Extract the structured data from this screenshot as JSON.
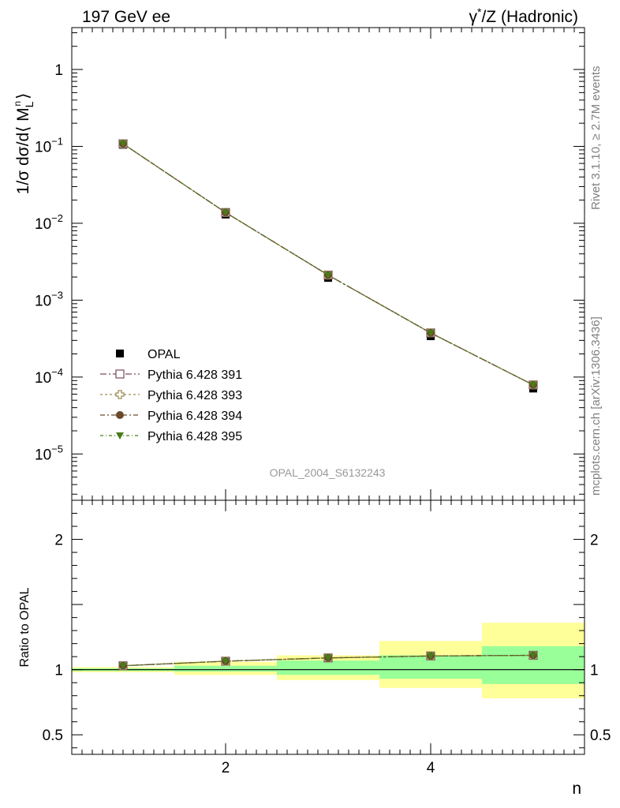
{
  "header": {
    "left": "197 GeV ee",
    "right_prefix": "γ",
    "right_sup": "*",
    "right_rest": "/Z (Hadronic)"
  },
  "side": {
    "rivet": "Rivet 3.1.10, ≥ 2.7M events",
    "mcplots": "mcplots.cern.ch [arXiv:1306.3436]"
  },
  "watermark": "OPAL_2004_S6132243",
  "upper_ylabel": "1/σ dσ/d⟨ M",
  "upper_ylabel_sub": "L",
  "upper_ylabel_sup": "n",
  "upper_ylabel_close": "⟩",
  "lower_ylabel": "Ratio to OPAL",
  "xlabel": "n",
  "legend": [
    {
      "label": "OPAL",
      "marker": "square-filled",
      "color": "#000000"
    },
    {
      "label": "Pythia 6.428 391",
      "marker": "square-open",
      "color": "#7a4a5a"
    },
    {
      "label": "Pythia 6.428 393",
      "marker": "cross-open",
      "color": "#9a8a50"
    },
    {
      "label": "Pythia 6.428 394",
      "marker": "circle-filled",
      "color": "#6a4a2a"
    },
    {
      "label": "Pythia 6.428 395",
      "marker": "triangle-down-filled",
      "color": "#4a7a1a"
    }
  ],
  "chart_data": [
    {
      "type": "scatter",
      "panel": "main",
      "yscale": "log",
      "xlim": [
        0.5,
        5.5
      ],
      "ylim": [
        2.5e-06,
        3.5
      ],
      "yticks": [
        {
          "value": 1,
          "label": "1"
        },
        {
          "value": 0.1,
          "label": "10",
          "exp": "−1"
        },
        {
          "value": 0.01,
          "label": "10",
          "exp": "−2"
        },
        {
          "value": 0.001,
          "label": "10",
          "exp": "−3"
        },
        {
          "value": 0.0001,
          "label": "10",
          "exp": "−4"
        },
        {
          "value": 1e-05,
          "label": "10",
          "exp": "−5"
        }
      ],
      "x": [
        1,
        2,
        3,
        4,
        5
      ],
      "series": [
        {
          "name": "OPAL",
          "values": [
            0.105,
            0.013,
            0.00195,
            0.00034,
            7.1e-05
          ]
        },
        {
          "name": "Pythia 6.428 391",
          "values": [
            0.108,
            0.0138,
            0.00212,
            0.000375,
            7.9e-05
          ]
        },
        {
          "name": "Pythia 6.428 393",
          "values": [
            0.108,
            0.0138,
            0.00212,
            0.000375,
            7.9e-05
          ]
        },
        {
          "name": "Pythia 6.428 394",
          "values": [
            0.108,
            0.0138,
            0.00212,
            0.000375,
            7.9e-05
          ]
        },
        {
          "name": "Pythia 6.428 395",
          "values": [
            0.108,
            0.0138,
            0.00212,
            0.000375,
            7.9e-05
          ]
        }
      ]
    },
    {
      "type": "scatter",
      "panel": "ratio",
      "xlim": [
        0.5,
        5.5
      ],
      "ylim": [
        0.35,
        2.3
      ],
      "xticks": [
        {
          "value": 2,
          "label": "2"
        },
        {
          "value": 4,
          "label": "4"
        }
      ],
      "yticks": [
        {
          "value": 2,
          "label": "2"
        },
        {
          "value": 1,
          "label": "1"
        },
        {
          "value": 0.5,
          "label": "0.5"
        }
      ],
      "bands": [
        {
          "xmin": 0.5,
          "xmax": 1.5,
          "stat_lo": 0.99,
          "stat_hi": 1.01,
          "tot_lo": 0.98,
          "tot_hi": 1.02
        },
        {
          "xmin": 1.5,
          "xmax": 2.5,
          "stat_lo": 0.985,
          "stat_hi": 1.03,
          "tot_lo": 0.96,
          "tot_hi": 1.06
        },
        {
          "xmin": 2.5,
          "xmax": 3.5,
          "stat_lo": 0.96,
          "stat_hi": 1.07,
          "tot_lo": 0.92,
          "tot_hi": 1.11
        },
        {
          "xmin": 3.5,
          "xmax": 4.5,
          "stat_lo": 0.93,
          "stat_hi": 1.11,
          "tot_lo": 0.86,
          "tot_hi": 1.22
        },
        {
          "xmin": 4.5,
          "xmax": 5.5,
          "stat_lo": 0.89,
          "stat_hi": 1.18,
          "tot_lo": 0.78,
          "tot_hi": 1.36
        }
      ],
      "x": [
        1,
        2,
        3,
        4,
        5
      ],
      "series": [
        {
          "name": "Pythia 6.428 391",
          "values": [
            1.03,
            1.065,
            1.09,
            1.105,
            1.11
          ]
        },
        {
          "name": "Pythia 6.428 393",
          "values": [
            1.03,
            1.065,
            1.09,
            1.105,
            1.11
          ]
        },
        {
          "name": "Pythia 6.428 394",
          "values": [
            1.03,
            1.065,
            1.09,
            1.105,
            1.11
          ]
        },
        {
          "name": "Pythia 6.428 395",
          "values": [
            1.03,
            1.065,
            1.09,
            1.105,
            1.11
          ]
        }
      ],
      "reference_line": 1
    }
  ]
}
